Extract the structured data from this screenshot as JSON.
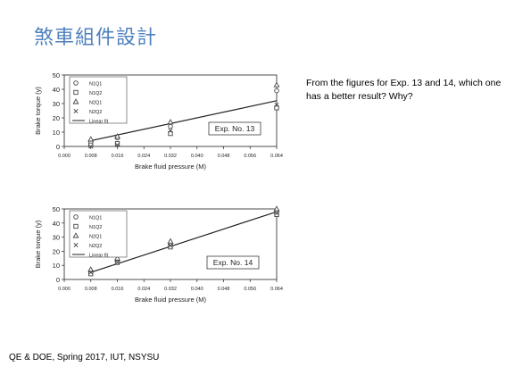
{
  "slide": {
    "title": "煞車組件設計",
    "question": "From the figures for Exp. 13 and 14, which one has a better result?  Why?",
    "footer": "QE & DOE, Spring 2017, IUT, NSYSU"
  },
  "chart_data": [
    {
      "type": "scatter",
      "exp_label": "Exp. No. 13",
      "xlabel": "Brake fluid pressure (M)",
      "ylabel": "Brake torque (y)",
      "xlim": [
        0,
        0.064
      ],
      "ylim": [
        0,
        50
      ],
      "xticks": [
        "0.000",
        "0.008",
        "0.016",
        "0.024",
        "0.032",
        "0.040",
        "0.048",
        "0.056",
        "0.064"
      ],
      "yticks": [
        "0",
        "10",
        "20",
        "30",
        "40",
        "50"
      ],
      "legend_position": "top-left",
      "series": [
        {
          "name": "N1Q1",
          "marker": "circle",
          "points": [
            [
              0.008,
              3
            ],
            [
              0.016,
              6
            ],
            [
              0.032,
              14
            ],
            [
              0.064,
              39
            ]
          ]
        },
        {
          "name": "N1Q2",
          "marker": "square",
          "points": [
            [
              0.008,
              1
            ],
            [
              0.016,
              2
            ],
            [
              0.032,
              9
            ],
            [
              0.064,
              27
            ]
          ]
        },
        {
          "name": "N2Q1",
          "marker": "triangle",
          "points": [
            [
              0.008,
              5
            ],
            [
              0.016,
              7
            ],
            [
              0.032,
              17
            ],
            [
              0.064,
              43
            ]
          ]
        },
        {
          "name": "N2Q2",
          "marker": "x",
          "points": [
            [
              0.008,
              0
            ],
            [
              0.016,
              1
            ],
            [
              0.032,
              11
            ],
            [
              0.064,
              29
            ]
          ]
        }
      ],
      "fit": {
        "name": "Linear fit",
        "points": [
          [
            0.008,
            4
          ],
          [
            0.064,
            32
          ]
        ]
      }
    },
    {
      "type": "scatter",
      "exp_label": "Exp. No. 14",
      "xlabel": "Brake fluid pressure (M)",
      "ylabel": "Brake torque (y)",
      "xlim": [
        0,
        0.064
      ],
      "ylim": [
        0,
        50
      ],
      "xticks": [
        "0.000",
        "0.008",
        "0.016",
        "0.024",
        "0.032",
        "0.040",
        "0.048",
        "0.056",
        "0.064"
      ],
      "yticks": [
        "0",
        "10",
        "20",
        "30",
        "40",
        "50"
      ],
      "legend_position": "top-left",
      "series": [
        {
          "name": "N1Q1",
          "marker": "circle",
          "points": [
            [
              0.008,
              6
            ],
            [
              0.016,
              13
            ],
            [
              0.032,
              25
            ],
            [
              0.064,
              48
            ]
          ]
        },
        {
          "name": "N1Q2",
          "marker": "square",
          "points": [
            [
              0.008,
              4
            ],
            [
              0.016,
              12
            ],
            [
              0.032,
              23
            ],
            [
              0.064,
              46
            ]
          ]
        },
        {
          "name": "N2Q1",
          "marker": "triangle",
          "points": [
            [
              0.008,
              7
            ],
            [
              0.016,
              15
            ],
            [
              0.032,
              27
            ],
            [
              0.064,
              50
            ]
          ]
        },
        {
          "name": "N2Q2",
          "marker": "x",
          "points": [
            [
              0.008,
              5
            ],
            [
              0.016,
              12
            ],
            [
              0.032,
              24
            ],
            [
              0.064,
              47
            ]
          ]
        }
      ],
      "fit": {
        "name": "Linear fit",
        "points": [
          [
            0.008,
            5
          ],
          [
            0.064,
            48
          ]
        ]
      }
    }
  ]
}
